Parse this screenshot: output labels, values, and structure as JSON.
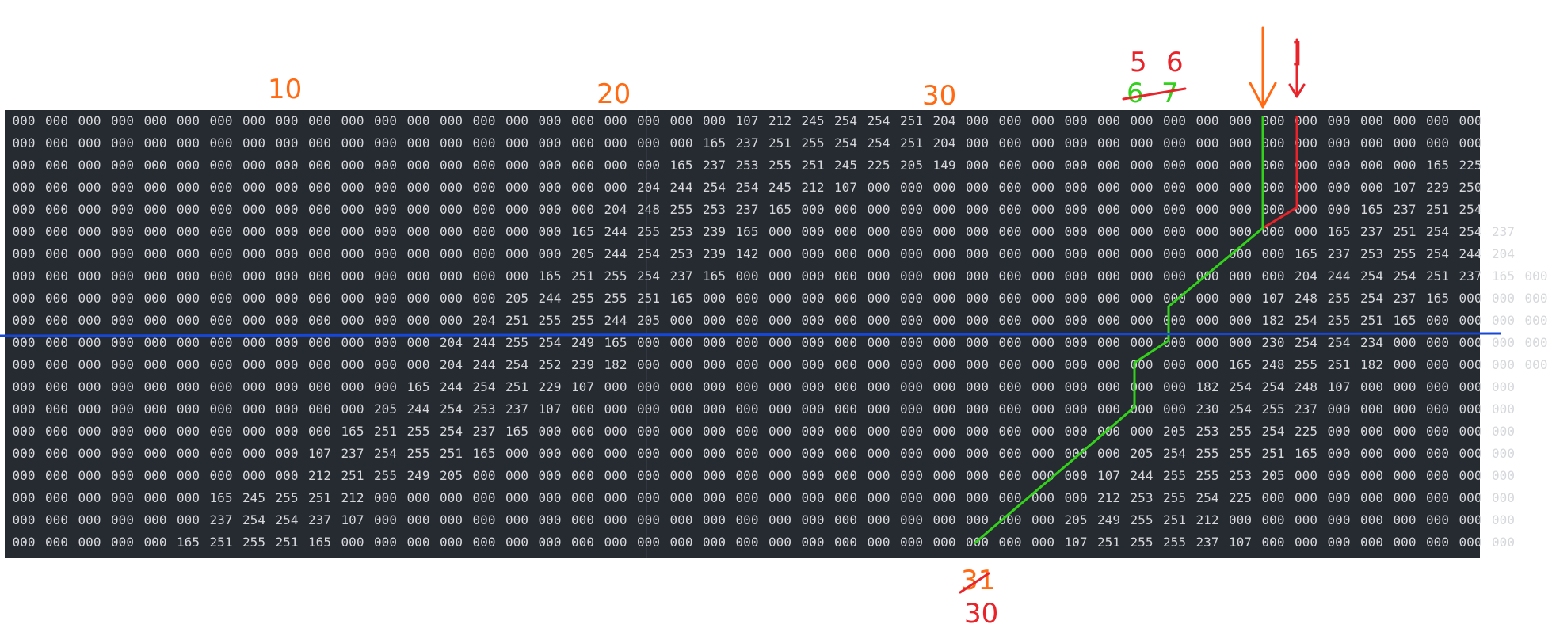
{
  "grid": {
    "rows": [
      "000 000 000 000 000 000 000 000 000 000 000 000 000 000 000 000 000 000 000 000 000 000 107 212 245 254 254 251 204 000 000 000 000 000 000 000 000 000 000 000 000 000 000 000 000",
      "000 000 000 000 000 000 000 000 000 000 000 000 000 000 000 000 000 000 000 000 000 165 237 251 255 254 254 251 204 000 000 000 000 000 000 000 000 000 000 000 000 000 000 000 000",
      "000 000 000 000 000 000 000 000 000 000 000 000 000 000 000 000 000 000 000 000 165 237 253 255 251 245 225 205 149 000 000 000 000 000 000 000 000 000 000 000 000 000 000 165 225",
      "000 000 000 000 000 000 000 000 000 000 000 000 000 000 000 000 000 000 000 204 244 254 254 245 212 107 000 000 000 000 000 000 000 000 000 000 000 000 000 000 000 000 107 229 250",
      "000 000 000 000 000 000 000 000 000 000 000 000 000 000 000 000 000 000 204 248 255 253 237 165 000 000 000 000 000 000 000 000 000 000 000 000 000 000 000 000 000 165 237 251 254",
      "000 000 000 000 000 000 000 000 000 000 000 000 000 000 000 000 000 165 244 255 253 239 165 000 000 000 000 000 000 000 000 000 000 000 000 000 000 000 000 000 165 237 251 254 254 237",
      "000 000 000 000 000 000 000 000 000 000 000 000 000 000 000 000 000 205 244 254 253 239 142 000 000 000 000 000 000 000 000 000 000 000 000 000 000 000 000 165 237 253 255 254 244 204",
      "000 000 000 000 000 000 000 000 000 000 000 000 000 000 000 000 165 251 255 254 237 165 000 000 000 000 000 000 000 000 000 000 000 000 000 000 000 000 000 204 244 254 254 251 237 165 000",
      "000 000 000 000 000 000 000 000 000 000 000 000 000 000 000 205 244 255 255 251 165 000 000 000 000 000 000 000 000 000 000 000 000 000 000 000 000 000 107 248 255 254 237 165 000 000 000",
      "000 000 000 000 000 000 000 000 000 000 000 000 000 000 204 251 255 255 244 205 000 000 000 000 000 000 000 000 000 000 000 000 000 000 000 000 000 000 182 254 255 251 165 000 000 000 000",
      "000 000 000 000 000 000 000 000 000 000 000 000 000 204 244 255 254 249 165 000 000 000 000 000 000 000 000 000 000 000 000 000 000 000 000 000 000 000 230 254 254 234 000 000 000 000 000",
      "000 000 000 000 000 000 000 000 000 000 000 000 000 204 244 254 252 239 182 000 000 000 000 000 000 000 000 000 000 000 000 000 000 000 000 000 000 165 248 255 251 182 000 000 000 000 000",
      "000 000 000 000 000 000 000 000 000 000 000 000 165 244 254 251 229 107 000 000 000 000 000 000 000 000 000 000 000 000 000 000 000 000 000 000 182 254 254 248 107 000 000 000 000 000",
      "000 000 000 000 000 000 000 000 000 000 000 205 244 254 253 237 107 000 000 000 000 000 000 000 000 000 000 000 000 000 000 000 000 000 000 000 230 254 255 237 000 000 000 000 000 000",
      "000 000 000 000 000 000 000 000 000 000 165 251 255 254 237 165 000 000 000 000 000 000 000 000 000 000 000 000 000 000 000 000 000 000 000 205 253 255 254 225 000 000 000 000 000 000",
      "000 000 000 000 000 000 000 000 000 107 237 254 255 251 165 000 000 000 000 000 000 000 000 000 000 000 000 000 000 000 000 000 000 000 205 254 255 255 251 165 000 000 000 000 000 000",
      "000 000 000 000 000 000 000 000 000 212 251 255 249 205 000 000 000 000 000 000 000 000 000 000 000 000 000 000 000 000 000 000 000 107 244 255 255 253 205 000 000 000 000 000 000 000",
      "000 000 000 000 000 000 165 245 255 251 212 000 000 000 000 000 000 000 000 000 000 000 000 000 000 000 000 000 000 000 000 000 000 212 253 255 254 225 000 000 000 000 000 000 000 000",
      "000 000 000 000 000 000 237 254 254 237 107 000 000 000 000 000 000 000 000 000 000 000 000 000 000 000 000 000 000 000 000 000 205 249 255 251 212 000 000 000 000 000 000 000 000 000",
      "000 000 000 000 000 165 251 255 251 165 000 000 000 000 000 000 000 000 000 000 000 000 000 000 000 000 000 000 000 000 000 000 107 251 255 255 237 107 000 000 000 000 000 000 000 000"
    ]
  },
  "annotations": {
    "col_10": "10",
    "col_20": "20",
    "col_30": "30",
    "top_5": "5",
    "top_6": "6",
    "struck_6": "6",
    "struck_7": "7",
    "right_mark": "]",
    "bottom_struck": "31",
    "bottom_30": "30",
    "colors": {
      "orange": "#ff6a13",
      "red": "#e8232a",
      "green": "#33d11c",
      "blue": "#1747d6"
    }
  }
}
